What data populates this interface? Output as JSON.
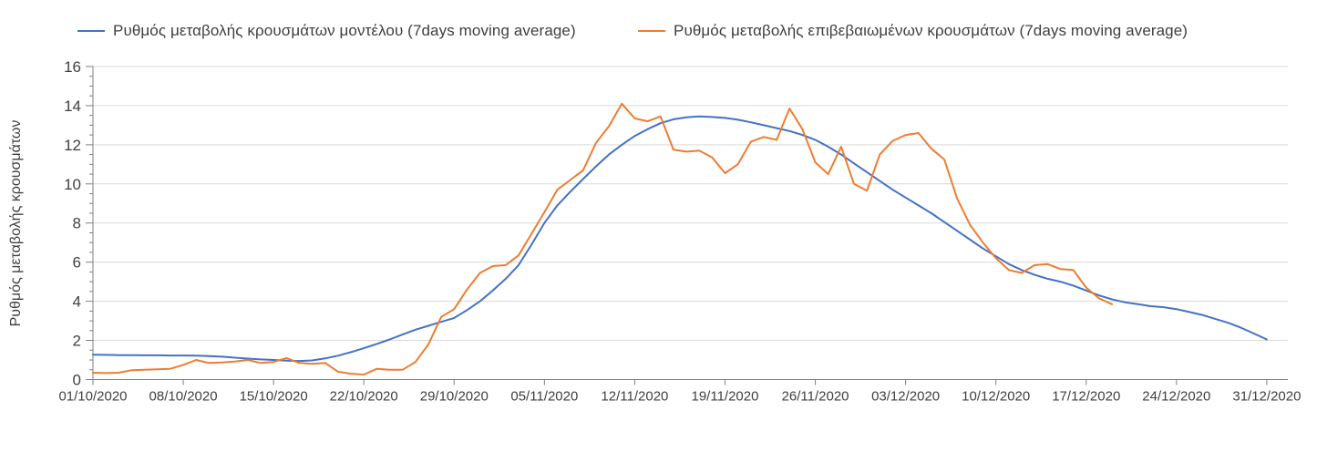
{
  "chart_data": {
    "type": "line",
    "title": "",
    "ylabel": "Ρυθμός μεταβολής κρουσμάτων",
    "xlabel": "",
    "ylim": [
      0,
      16
    ],
    "y_ticks": [
      0,
      2,
      4,
      6,
      8,
      10,
      12,
      14,
      16
    ],
    "y_minor_tick_step": 0.5,
    "grid": "horizontal gridlines every 2 units, no vertical gridlines",
    "legend_position": "top",
    "x_tick_labels": [
      "01/10/2020",
      "08/10/2020",
      "15/10/2020",
      "22/10/2020",
      "29/10/2020",
      "05/11/2020",
      "12/11/2020",
      "19/11/2020",
      "26/11/2020",
      "03/12/2020",
      "10/12/2020",
      "17/12/2020",
      "24/12/2020",
      "31/12/2020"
    ],
    "x_unit": "one value per day starting 01/10/2020",
    "series": [
      {
        "name": "Ρυθμός μεταβολής κρουσμάτων μοντέλου (7days moving average)",
        "color": "#4472C4",
        "values": [
          1.27,
          1.26,
          1.25,
          1.25,
          1.24,
          1.24,
          1.23,
          1.23,
          1.22,
          1.2,
          1.17,
          1.12,
          1.07,
          1.03,
          1.0,
          0.97,
          0.95,
          0.98,
          1.08,
          1.22,
          1.4,
          1.6,
          1.82,
          2.05,
          2.3,
          2.55,
          2.75,
          2.95,
          3.15,
          3.55,
          4.0,
          4.55,
          5.15,
          5.85,
          6.9,
          8.0,
          8.9,
          9.6,
          10.25,
          10.9,
          11.5,
          12.0,
          12.45,
          12.8,
          13.1,
          13.3,
          13.4,
          13.45,
          13.42,
          13.37,
          13.28,
          13.15,
          13.0,
          12.85,
          12.7,
          12.5,
          12.25,
          11.9,
          11.5,
          11.05,
          10.6,
          10.15,
          9.7,
          9.3,
          8.9,
          8.5,
          8.05,
          7.6,
          7.15,
          6.7,
          6.3,
          5.9,
          5.6,
          5.35,
          5.15,
          5.0,
          4.8,
          4.55,
          4.3,
          4.1,
          3.95,
          3.85,
          3.75,
          3.7,
          3.6,
          3.45,
          3.3,
          3.1,
          2.9,
          2.65,
          2.35,
          2.05
        ]
      },
      {
        "name": "Ρυθμός μεταβολής επιβεβαιωμένων κρουσμάτων (7days moving average)",
        "color": "#ED7D31",
        "values": [
          0.35,
          0.33,
          0.35,
          0.48,
          0.5,
          0.52,
          0.55,
          0.75,
          1.0,
          0.85,
          0.87,
          0.92,
          1.0,
          0.85,
          0.9,
          1.1,
          0.85,
          0.8,
          0.85,
          0.4,
          0.3,
          0.25,
          0.55,
          0.5,
          0.5,
          0.9,
          1.8,
          3.2,
          3.6,
          4.6,
          5.45,
          5.8,
          5.85,
          6.35,
          7.45,
          8.55,
          9.7,
          10.2,
          10.7,
          12.1,
          12.95,
          14.1,
          13.35,
          13.2,
          13.45,
          11.75,
          11.65,
          11.7,
          11.35,
          10.55,
          11.0,
          12.15,
          12.4,
          12.25,
          13.85,
          12.8,
          11.1,
          10.5,
          11.9,
          10.0,
          9.65,
          11.5,
          12.2,
          12.5,
          12.6,
          11.8,
          11.25,
          9.25,
          7.9,
          7.0,
          6.2,
          5.6,
          5.45,
          5.85,
          5.9,
          5.65,
          5.6,
          4.7,
          4.15,
          3.85
        ]
      }
    ]
  },
  "colors": {
    "background": "#ffffff",
    "gridline": "#d9d9d9",
    "axis": "#808080",
    "tick_text": "#404040",
    "legend_text": "#3f3f3f"
  }
}
